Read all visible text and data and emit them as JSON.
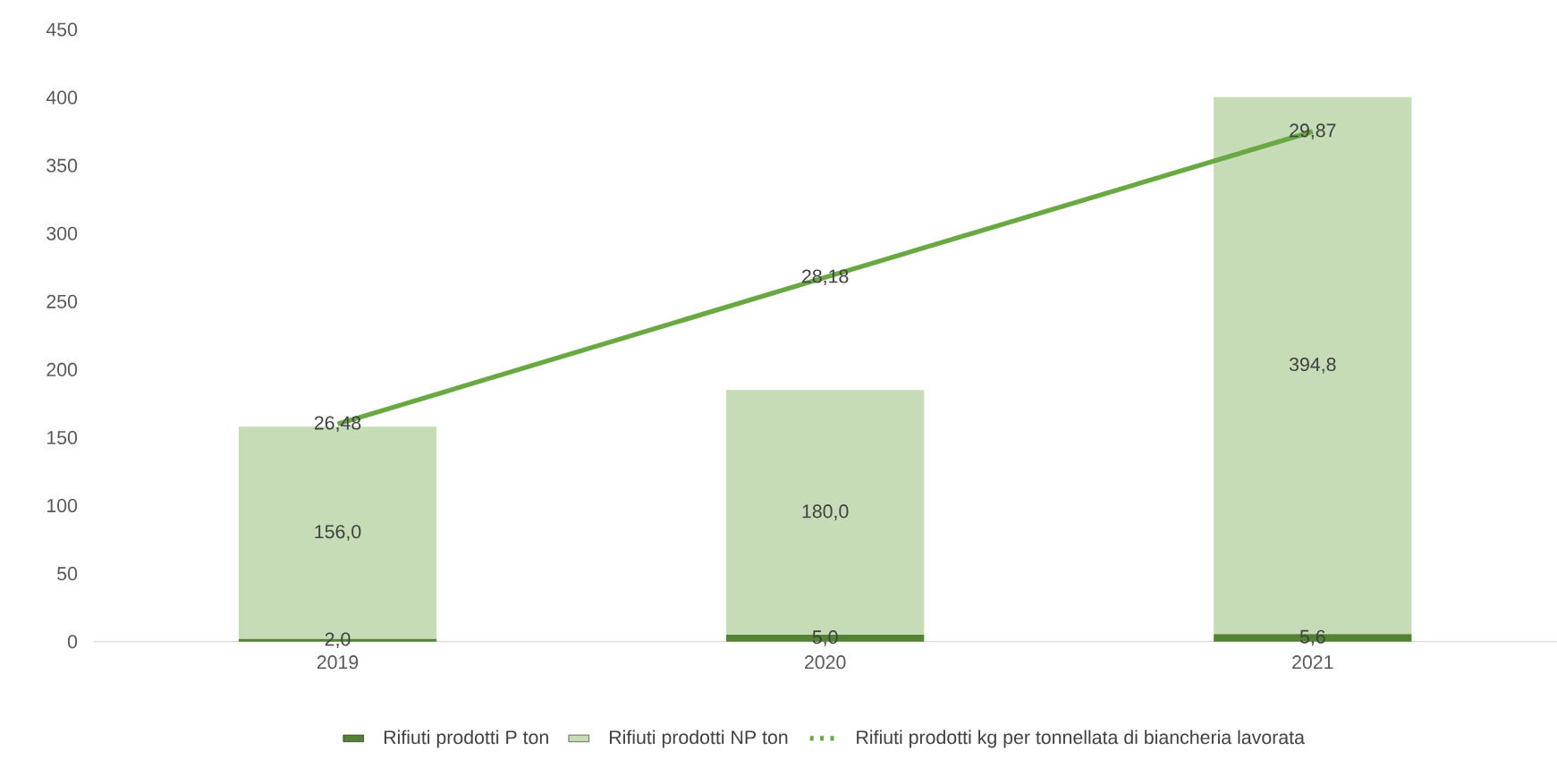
{
  "chart_data": {
    "type": "bar",
    "stacked": true,
    "categories": [
      "2019",
      "2020",
      "2021"
    ],
    "series": [
      {
        "name": "Rifiuti prodotti P ton",
        "color": "#548235",
        "values": [
          2.0,
          5.0,
          5.6
        ],
        "value_labels": [
          "2,0",
          "5,0",
          "5,6"
        ]
      },
      {
        "name": "Rifiuti prodotti NP ton",
        "color": "#c5dcb6",
        "values": [
          156.0,
          180.0,
          394.8
        ],
        "value_labels": [
          "156,0",
          "180,0",
          "394,8"
        ]
      },
      {
        "name": "Rifiuti prodotti kg per tonnellata di biancheria lavorata",
        "type": "line",
        "axis": "y2",
        "color": "#6aa843",
        "values": [
          26.48,
          28.18,
          29.87
        ],
        "value_labels": [
          "26,48",
          "28,18",
          "29,87"
        ]
      }
    ],
    "ylim": [
      0,
      450
    ],
    "yticks": [
      0,
      50,
      100,
      150,
      200,
      250,
      300,
      350,
      400,
      450
    ],
    "legend": "bottom",
    "marker": "none"
  }
}
